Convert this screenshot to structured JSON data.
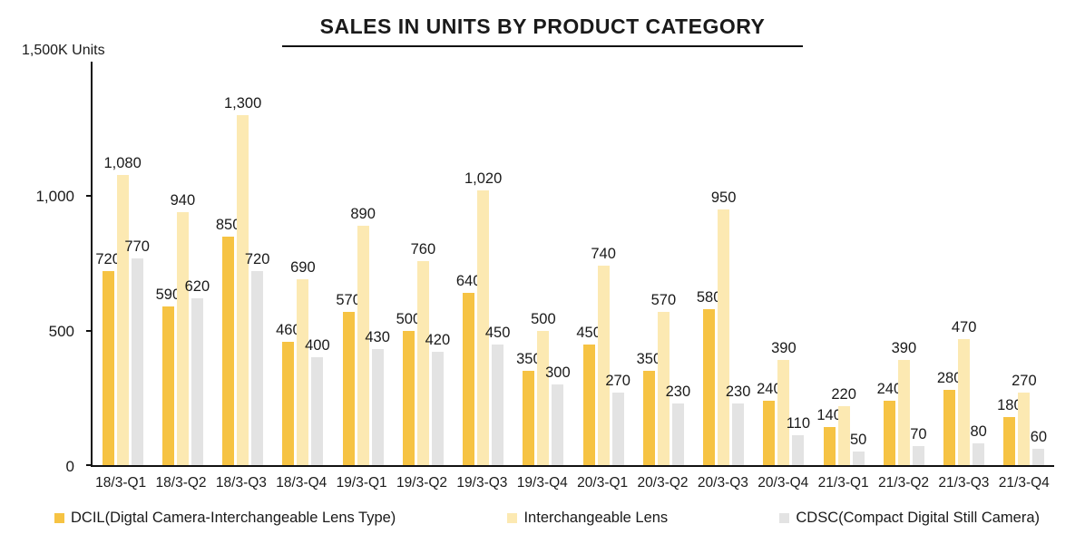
{
  "chart_data": {
    "type": "bar",
    "title": "SALES IN UNITS BY PRODUCT CATEGORY",
    "ylabel": "1,500K Units",
    "xlabel": "",
    "ylim": [
      0,
      1500
    ],
    "yticks": [
      0,
      500,
      1000
    ],
    "grid": false,
    "legend_position": "bottom",
    "categories": [
      "18/3-Q1",
      "18/3-Q2",
      "18/3-Q3",
      "18/3-Q4",
      "19/3-Q1",
      "19/3-Q2",
      "19/3-Q3",
      "19/3-Q4",
      "20/3-Q1",
      "20/3-Q2",
      "20/3-Q3",
      "20/3-Q4",
      "21/3-Q1",
      "21/3-Q2",
      "21/3-Q3",
      "21/3-Q4"
    ],
    "series": [
      {
        "key": "dcil",
        "name": "DCIL(Digtal Camera-Interchangeable Lens Type)",
        "color": "#F6C343",
        "values": [
          720,
          590,
          850,
          460,
          570,
          500,
          640,
          350,
          450,
          350,
          580,
          240,
          140,
          240,
          280,
          180
        ]
      },
      {
        "key": "interchangeable-lens",
        "name": "Interchangeable Lens",
        "color": "#FCE9B2",
        "values": [
          1080,
          940,
          1300,
          690,
          890,
          760,
          1020,
          500,
          740,
          570,
          950,
          390,
          220,
          390,
          470,
          270
        ]
      },
      {
        "key": "cdsc",
        "name": "CDSC(Compact Digital Still Camera)",
        "color": "#E3E3E3",
        "values": [
          770,
          620,
          720,
          400,
          430,
          420,
          450,
          300,
          270,
          230,
          230,
          110,
          50,
          70,
          80,
          60
        ]
      }
    ]
  }
}
